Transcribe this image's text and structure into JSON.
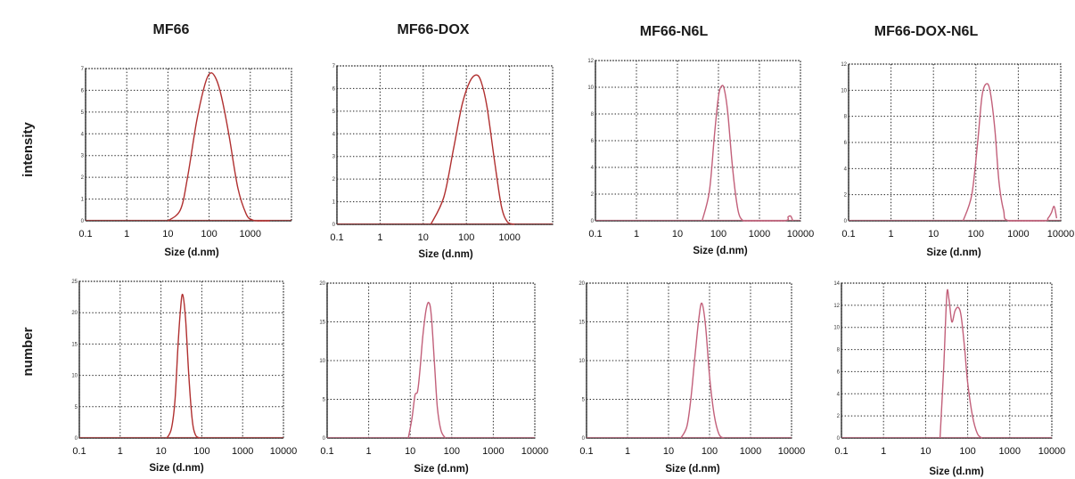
{
  "figure": {
    "columns": [
      "MF66",
      "MF66-DOX",
      "MF66-N6L",
      "MF66-DOX-N6L"
    ],
    "rows": [
      "intensity",
      "number"
    ]
  },
  "chart_data": [
    {
      "type": "line",
      "row": "intensity",
      "column": "MF66",
      "xscale": "log",
      "xlim": [
        0.1,
        10000
      ],
      "ylim": [
        0,
        7
      ],
      "xticks": [
        "0.1",
        "1",
        "10",
        "100",
        "1000"
      ],
      "yticks": [
        "0",
        "1",
        "2",
        "3",
        "4",
        "5",
        "6",
        "7"
      ],
      "xlabel": "Size (d.nm)",
      "ylabel": "",
      "grid": true,
      "line_color": "#b03030",
      "x": [
        10,
        20,
        30,
        50,
        80,
        110,
        150,
        200,
        300,
        500,
        800,
        1100,
        1500,
        3000
      ],
      "y": [
        0,
        0.5,
        2.0,
        4.6,
        6.3,
        6.8,
        6.5,
        5.7,
        4.0,
        1.5,
        0.3,
        0.05,
        0,
        0
      ]
    },
    {
      "type": "line",
      "row": "intensity",
      "column": "MF66-DOX",
      "xscale": "log",
      "xlim": [
        0.1,
        10000
      ],
      "ylim": [
        0,
        7
      ],
      "xticks": [
        "0.1",
        "1",
        "10",
        "100",
        "1000"
      ],
      "yticks": [
        "0",
        "1",
        "2",
        "3",
        "4",
        "5",
        "6",
        "7"
      ],
      "xlabel": "Size (d.nm)",
      "ylabel": "",
      "grid": true,
      "line_color": "#b03030",
      "x": [
        15,
        30,
        50,
        80,
        120,
        170,
        220,
        300,
        450,
        650,
        900,
        1300
      ],
      "y": [
        0,
        1.2,
        3.3,
        5.3,
        6.3,
        6.6,
        6.3,
        5.2,
        2.8,
        0.8,
        0.1,
        0
      ]
    },
    {
      "type": "line",
      "row": "intensity",
      "column": "MF66-N6L",
      "xscale": "log",
      "xlim": [
        0.1,
        10000
      ],
      "ylim": [
        0,
        12
      ],
      "xticks": [
        "0.1",
        "1",
        "10",
        "100",
        "1000",
        "10000"
      ],
      "yticks": [
        "0",
        "2",
        "4",
        "6",
        "8",
        "10",
        "12"
      ],
      "xlabel": "Size (d.nm)",
      "ylabel": "",
      "grid": true,
      "line_color": "#c2607a",
      "x": [
        40,
        60,
        80,
        100,
        120,
        140,
        170,
        220,
        300,
        400,
        500,
        4000,
        5000,
        5800,
        6500
      ],
      "y": [
        0,
        2.2,
        6.4,
        9.3,
        10.1,
        9.8,
        8.0,
        4.0,
        0.8,
        0,
        0,
        0,
        0.3,
        0.35,
        0
      ]
    },
    {
      "type": "line",
      "row": "intensity",
      "column": "MF66-DOX-N6L",
      "xscale": "log",
      "xlim": [
        0.1,
        10000
      ],
      "ylim": [
        0,
        12
      ],
      "xticks": [
        "0.1",
        "1",
        "10",
        "100",
        "1000",
        "10000"
      ],
      "yticks": [
        "0",
        "2",
        "4",
        "6",
        "8",
        "10",
        "12"
      ],
      "xlabel": "Size (d.nm)",
      "ylabel": "",
      "grid": true,
      "line_color": "#c2607a",
      "x": [
        50,
        80,
        110,
        140,
        180,
        220,
        280,
        350,
        450,
        600,
        4000,
        5000,
        6000,
        7000,
        8000
      ],
      "y": [
        0,
        2.0,
        6.0,
        9.6,
        10.5,
        9.8,
        7.0,
        3.0,
        0.8,
        0,
        0,
        0.2,
        0.6,
        1.1,
        0.2
      ]
    },
    {
      "type": "line",
      "row": "number",
      "column": "MF66",
      "xscale": "log",
      "xlim": [
        0.1,
        10000
      ],
      "ylim": [
        0,
        25
      ],
      "xticks": [
        "0.1",
        "1",
        "10",
        "100",
        "1000",
        "10000"
      ],
      "yticks": [
        "0",
        "5",
        "10",
        "15",
        "20",
        "25"
      ],
      "xlabel": "Size (d.nm)",
      "ylabel": "",
      "grid": true,
      "line_color": "#b03030",
      "x": [
        14,
        18,
        22,
        26,
        30,
        34,
        40,
        48,
        58,
        70,
        90
      ],
      "y": [
        0,
        1.5,
        6.0,
        14.5,
        20.5,
        22.9,
        19.0,
        10.0,
        3.0,
        0.5,
        0
      ]
    },
    {
      "type": "line",
      "row": "number",
      "column": "MF66-DOX",
      "xscale": "log",
      "xlim": [
        0.1,
        10000
      ],
      "ylim": [
        0,
        20
      ],
      "xticks": [
        "0.1",
        "1",
        "10",
        "100",
        "1000",
        "10000"
      ],
      "yticks": [
        "0",
        "5",
        "10",
        "15",
        "20"
      ],
      "xlabel": "Size (d.nm)",
      "ylabel": "",
      "grid": true,
      "line_color": "#c2607a",
      "x": [
        9,
        11,
        13,
        15,
        17,
        20,
        24,
        28,
        32,
        38,
        45,
        55,
        70
      ],
      "y": [
        0,
        2.5,
        5.5,
        6.0,
        8.5,
        13.0,
        16.5,
        17.5,
        16.0,
        10.0,
        4.0,
        1.0,
        0
      ]
    },
    {
      "type": "line",
      "row": "number",
      "column": "MF66-N6L",
      "xscale": "log",
      "xlim": [
        0.1,
        10000
      ],
      "ylim": [
        0,
        20
      ],
      "xticks": [
        "0.1",
        "1",
        "10",
        "100",
        "1000",
        "10000"
      ],
      "yticks": [
        "0",
        "5",
        "10",
        "15",
        "20"
      ],
      "xlabel": "Size (d.nm)",
      "ylabel": "",
      "grid": true,
      "line_color": "#c2607a",
      "x": [
        20,
        28,
        35,
        45,
        55,
        65,
        80,
        100,
        130,
        170,
        220
      ],
      "y": [
        0,
        1.5,
        5.0,
        11.0,
        15.5,
        17.4,
        14.5,
        8.0,
        3.0,
        0.5,
        0
      ]
    },
    {
      "type": "line",
      "row": "number",
      "column": "MF66-DOX-N6L",
      "xscale": "log",
      "xlim": [
        0.1,
        10000
      ],
      "ylim": [
        0,
        14
      ],
      "xticks": [
        "0.1",
        "1",
        "10",
        "100",
        "1000",
        "10000"
      ],
      "yticks": [
        "0",
        "2",
        "4",
        "6",
        "8",
        "10",
        "12",
        "14"
      ],
      "xlabel": "Size (d.nm)",
      "ylabel": "",
      "grid": true,
      "line_color": "#c2607a",
      "x": [
        22,
        27,
        32,
        36,
        42,
        50,
        60,
        70,
        85,
        100,
        130,
        170,
        220
      ],
      "y": [
        0,
        6.5,
        13.0,
        12.5,
        10.5,
        11.5,
        11.8,
        11.0,
        8.0,
        5.0,
        2.0,
        0.4,
        0
      ]
    }
  ]
}
